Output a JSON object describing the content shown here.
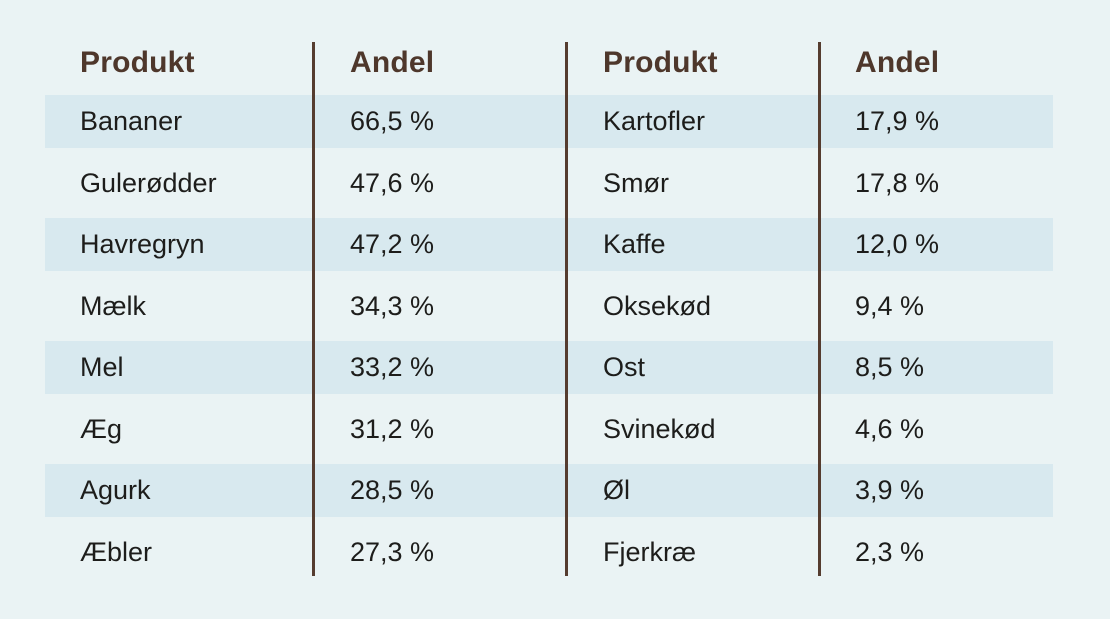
{
  "colors": {
    "background": "#eaf3f4",
    "stripe": "#d8e9ef",
    "header_text": "#4e372b",
    "divider": "#553c2f",
    "body_text": "#1d1d1b"
  },
  "table": {
    "left": {
      "product_header": "Produkt",
      "share_header": "Andel",
      "rows": [
        {
          "product": "Bananer",
          "share": "66,5 %"
        },
        {
          "product": "Gulerødder",
          "share": "47,6 %"
        },
        {
          "product": "Havregryn",
          "share": "47,2 %"
        },
        {
          "product": "Mælk",
          "share": "34,3 %"
        },
        {
          "product": "Mel",
          "share": "33,2 %"
        },
        {
          "product": "Æg",
          "share": "31,2 %"
        },
        {
          "product": "Agurk",
          "share": "28,5 %"
        },
        {
          "product": "Æbler",
          "share": "27,3 %"
        }
      ]
    },
    "right": {
      "product_header": "Produkt",
      "share_header": "Andel",
      "rows": [
        {
          "product": "Kartofler",
          "share": "17,9 %"
        },
        {
          "product": "Smør",
          "share": "17,8 %"
        },
        {
          "product": "Kaffe",
          "share": "12,0 %"
        },
        {
          "product": "Oksekød",
          "share": "9,4 %"
        },
        {
          "product": "Ost",
          "share": "8,5 %"
        },
        {
          "product": "Svinekød",
          "share": "4,6 %"
        },
        {
          "product": "Øl",
          "share": "3,9 %"
        },
        {
          "product": "Fjerkræ",
          "share": "2,3 %"
        }
      ]
    }
  },
  "chart_data": {
    "type": "table",
    "columns": [
      "Produkt",
      "Andel"
    ],
    "unit": "%",
    "decimal_separator": ",",
    "rows": [
      [
        "Bananer",
        66.5
      ],
      [
        "Gulerødder",
        47.6
      ],
      [
        "Havregryn",
        47.2
      ],
      [
        "Mælk",
        34.3
      ],
      [
        "Mel",
        33.2
      ],
      [
        "Æg",
        31.2
      ],
      [
        "Agurk",
        28.5
      ],
      [
        "Æbler",
        27.3
      ],
      [
        "Kartofler",
        17.9
      ],
      [
        "Smør",
        17.8
      ],
      [
        "Kaffe",
        12.0
      ],
      [
        "Oksekød",
        9.4
      ],
      [
        "Ost",
        8.5
      ],
      [
        "Svinekød",
        4.6
      ],
      [
        "Øl",
        3.9
      ],
      [
        "Fjerkræ",
        2.3
      ]
    ]
  }
}
